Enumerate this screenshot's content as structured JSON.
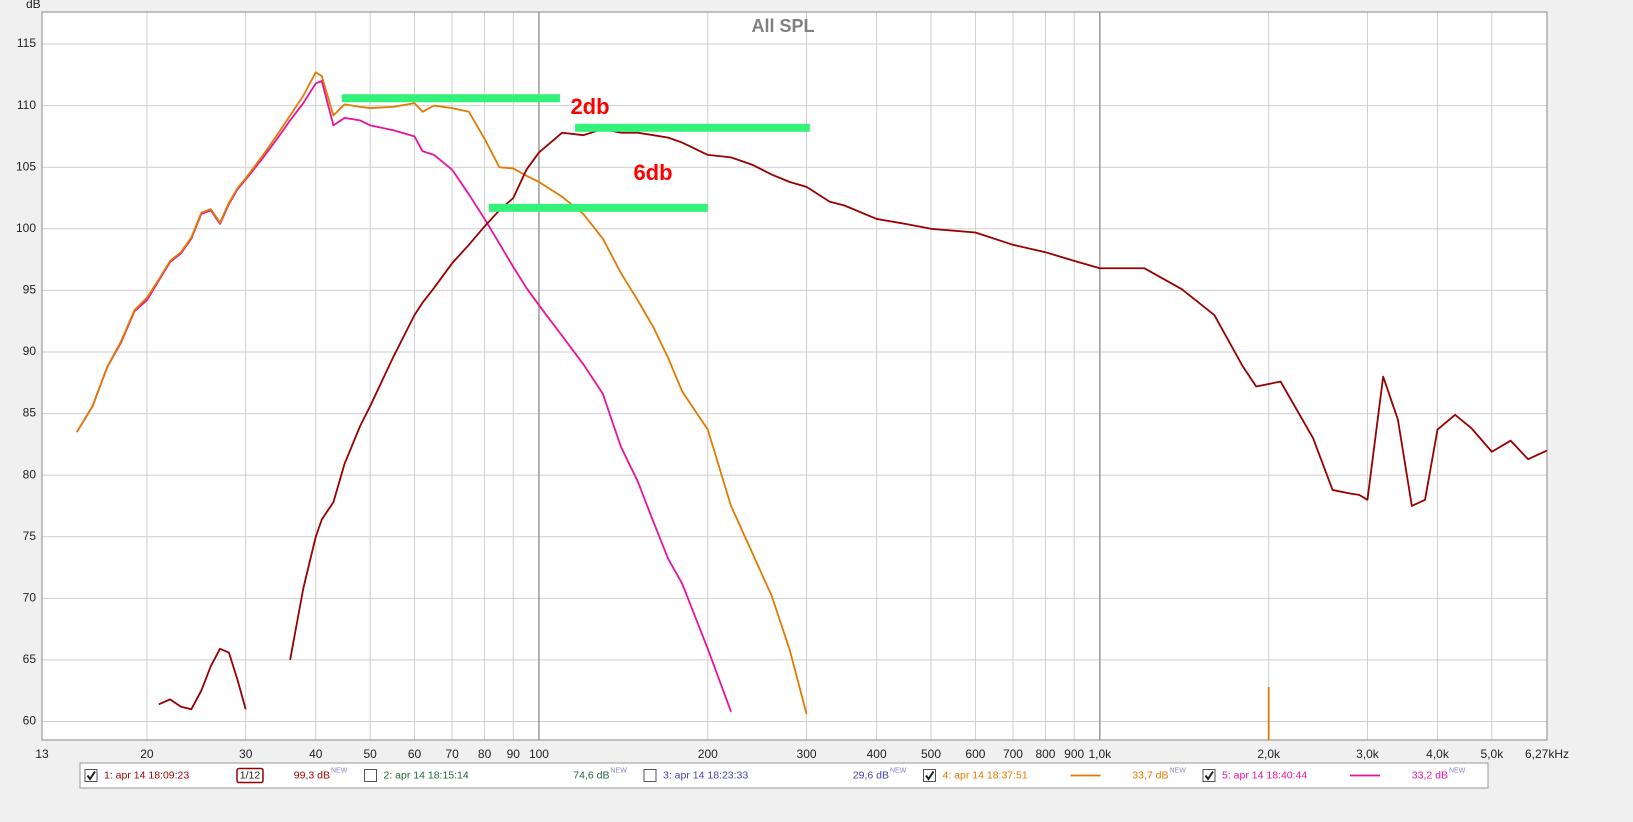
{
  "chart_data": {
    "type": "line",
    "title": "All SPL",
    "y_label": "dB",
    "xscale": "log",
    "grid": true,
    "xlim": [
      13,
      6270
    ],
    "ylim": [
      58.5,
      117.6
    ],
    "xticks": [
      13,
      20,
      30,
      40,
      50,
      60,
      70,
      80,
      90,
      100,
      200,
      300,
      400,
      500,
      600,
      700,
      800,
      900,
      {
        "value": 1000,
        "label": "1,0k"
      },
      {
        "value": 2000,
        "label": "2,0k"
      },
      {
        "value": 3000,
        "label": "3,0k"
      },
      {
        "value": 4000,
        "label": "4,0k"
      },
      {
        "value": 5000,
        "label": "5,0k"
      },
      {
        "value": 6270,
        "label": "6,27kHz"
      }
    ],
    "yticks": [
      60,
      65,
      70,
      75,
      80,
      85,
      90,
      95,
      100,
      105,
      110,
      115
    ],
    "x": [
      14,
      15,
      16,
      17,
      18,
      19,
      20,
      21,
      22,
      23,
      24,
      25,
      26,
      27,
      28,
      29,
      30,
      32,
      34,
      36,
      38,
      40,
      41,
      43,
      45,
      48,
      50,
      55,
      60,
      62,
      65,
      70,
      75,
      80,
      85,
      90,
      95,
      100,
      110,
      120,
      130,
      140,
      150,
      160,
      170,
      180,
      200,
      220,
      240,
      260,
      280,
      300,
      330,
      350,
      400,
      450,
      500,
      600,
      700,
      800,
      900,
      1000,
      1100,
      1200,
      1400,
      1600,
      1800,
      1900,
      2000,
      2100,
      2200,
      2400,
      2600,
      2800,
      2900,
      3000,
      3200,
      3400,
      3600,
      3800,
      4000,
      4300,
      4600,
      5000,
      5400,
      5800,
      6270
    ],
    "level_tag": "NEW",
    "series": [
      {
        "name": "1: apr 14 18:09:23",
        "color": "#990000",
        "visible": true,
        "level": "99,3 dB",
        "smoothing": "1/12",
        "values": [
          null,
          null,
          null,
          null,
          null,
          null,
          null,
          61.4,
          61.8,
          61.2,
          61.0,
          62.5,
          64.5,
          65.9,
          65.6,
          63.4,
          61.0,
          null,
          null,
          65.0,
          70.8,
          75.0,
          76.4,
          77.8,
          80.9,
          84.0,
          85.6,
          89.6,
          93.0,
          94.0,
          95.2,
          97.2,
          98.7,
          100.2,
          101.5,
          102.5,
          104.8,
          106.2,
          107.8,
          107.6,
          108.1,
          107.8,
          107.8,
          107.6,
          107.4,
          107.0,
          106.0,
          105.8,
          105.2,
          104.4,
          103.8,
          103.4,
          102.2,
          101.9,
          100.8,
          100.4,
          100.0,
          99.7,
          98.7,
          98.1,
          97.4,
          96.8,
          96.8,
          96.8,
          95.1,
          93.0,
          88.8,
          87.2,
          87.4,
          87.6,
          86.0,
          83.0,
          78.8,
          78.5,
          78.4,
          78.0,
          88.0,
          84.5,
          77.5,
          78.0,
          83.7,
          84.9,
          83.8,
          81.9,
          82.8,
          81.3,
          82.0
        ]
      },
      {
        "name": "2: apr 14 18:15:14",
        "color": "#1e6b3a",
        "visible": false,
        "level": "74,6 dB",
        "values": [
          null,
          null,
          null,
          null,
          null,
          null,
          null,
          null,
          null,
          null,
          null,
          null,
          null,
          null,
          null,
          null,
          null,
          null,
          null,
          null,
          null,
          null,
          null,
          null,
          null,
          null,
          null,
          null,
          null,
          null,
          null,
          null,
          null,
          null,
          null,
          null,
          null,
          null,
          null,
          null,
          null,
          null,
          null,
          null,
          null,
          null,
          null,
          null,
          null,
          null,
          null,
          null,
          null,
          null,
          null,
          null,
          null,
          null,
          null,
          null,
          null,
          null,
          null,
          null,
          null,
          null,
          null,
          null,
          null,
          null,
          null,
          null,
          null,
          null,
          null,
          null,
          null,
          null,
          null,
          null,
          null,
          null,
          null,
          null,
          null,
          null,
          null
        ]
      },
      {
        "name": "3: apr 14 18:23:33",
        "color": "#4444a8",
        "visible": false,
        "level": "29,6 dB",
        "values": [
          null,
          null,
          null,
          null,
          null,
          null,
          null,
          null,
          null,
          null,
          null,
          null,
          null,
          null,
          null,
          null,
          null,
          null,
          null,
          null,
          null,
          null,
          null,
          null,
          null,
          null,
          null,
          null,
          null,
          null,
          null,
          null,
          null,
          null,
          null,
          null,
          null,
          null,
          null,
          null,
          null,
          null,
          null,
          null,
          null,
          null,
          null,
          null,
          null,
          null,
          null,
          null,
          null,
          null,
          null,
          null,
          null,
          null,
          null,
          null,
          null,
          null,
          null,
          null,
          null,
          null,
          null,
          null,
          null,
          null,
          null,
          null,
          null,
          null,
          null,
          null,
          null,
          null,
          null,
          null,
          null,
          null,
          null,
          null,
          null,
          null,
          null
        ]
      },
      {
        "name": "4: apr 14 18:37:51",
        "color": "#e07b00",
        "visible": true,
        "level": "33,7 dB",
        "values": [
          null,
          83.5,
          85.6,
          88.8,
          90.9,
          93.4,
          94.4,
          95.9,
          97.4,
          98.1,
          99.3,
          101.3,
          101.6,
          100.5,
          102.1,
          103.3,
          104.1,
          105.8,
          107.5,
          109.2,
          110.8,
          112.7,
          112.4,
          109.2,
          110.1,
          109.9,
          109.8,
          109.9,
          110.2,
          109.5,
          110.0,
          109.8,
          109.5,
          107.3,
          105.0,
          104.9,
          104.3,
          103.8,
          102.6,
          101.2,
          99.2,
          96.4,
          94.2,
          92.0,
          89.5,
          86.8,
          83.7,
          77.5,
          73.7,
          70.2,
          65.8,
          60.6,
          null,
          null,
          null,
          null,
          null,
          null,
          null,
          null,
          null,
          null,
          null,
          null,
          null,
          null,
          null,
          null,
          62.8,
          null,
          null,
          null,
          null,
          null,
          null,
          null,
          null,
          null,
          null,
          null,
          null,
          null,
          null,
          null,
          null,
          null,
          null
        ]
      },
      {
        "name": "5: apr 14 18:40:44",
        "color": "#e8129e",
        "visible": true,
        "level": "33,2 dB",
        "values": [
          null,
          83.5,
          85.6,
          88.8,
          90.8,
          93.3,
          94.2,
          95.8,
          97.3,
          98.0,
          99.2,
          101.2,
          101.5,
          100.4,
          102.0,
          103.2,
          104.0,
          105.6,
          107.2,
          108.8,
          110.2,
          111.8,
          112.0,
          108.4,
          109.0,
          108.8,
          108.4,
          108.0,
          107.5,
          106.3,
          106.0,
          104.8,
          102.8,
          100.8,
          98.8,
          96.9,
          95.2,
          93.8,
          91.3,
          89.0,
          86.6,
          82.3,
          79.5,
          76.2,
          73.2,
          71.2,
          65.9,
          60.8,
          null,
          null,
          null,
          null,
          null,
          null,
          null,
          null,
          null,
          null,
          null,
          null,
          null,
          null,
          null,
          null,
          null,
          null,
          null,
          null,
          null,
          null,
          null,
          null,
          null,
          null,
          null,
          null,
          null,
          null,
          null,
          null,
          null,
          null,
          null,
          null,
          null,
          null,
          null
        ]
      }
    ],
    "level_marks": [
      {
        "x": [
          44.5,
          109
        ],
        "y": 110.6
      },
      {
        "x": [
          116,
          304
        ],
        "y": 108.2
      },
      {
        "x": [
          81.4,
          200
        ],
        "y": 101.7
      }
    ],
    "annotations": [
      {
        "text": "2db"
      },
      {
        "text": "6db"
      }
    ]
  }
}
